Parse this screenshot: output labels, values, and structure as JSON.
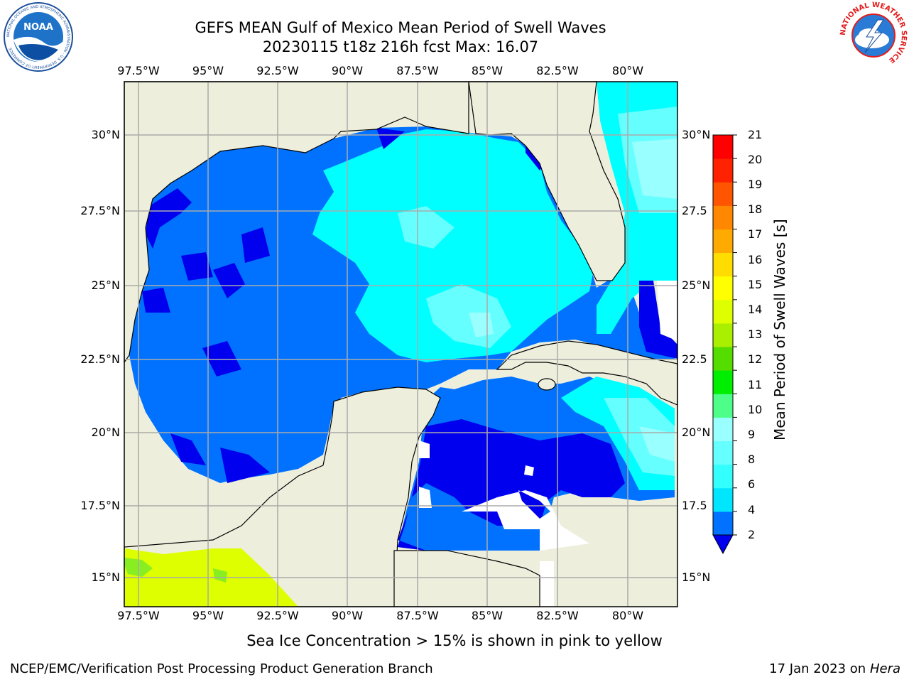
{
  "title": "GEFS MEAN Gulf of Mexico Mean Period of Swell Waves",
  "subtitle": "20230115 t18z 216h fcst   Max: 16.07",
  "lon_ticks": [
    "97.5°W",
    "95°W",
    "92.5°W",
    "90°W",
    "87.5°W",
    "85°W",
    "82.5°W",
    "80°W"
  ],
  "lat_ticks_left": [
    "30°N",
    "27.5°N",
    "25°N",
    "22.5°N",
    "20°N",
    "17.5°N",
    "15°N"
  ],
  "lat_ticks_right": [
    "30°N",
    "27.5",
    "25°N",
    "22.5",
    "20°N",
    "17.5",
    "15°N"
  ],
  "colorbar": {
    "label": "Mean Period of Swell Waves [s]",
    "ticks": [
      "21",
      "20",
      "19",
      "18",
      "17",
      "16",
      "15",
      "14",
      "13",
      "12",
      "11",
      "10",
      "9",
      "8",
      "6",
      "4",
      "2"
    ],
    "colors": [
      "#0000ee",
      "#0072ff",
      "#00e6ff",
      "#33ffff",
      "#66ffff",
      "#99ffff",
      "#4dff88",
      "#00ee00",
      "#55dd00",
      "#aaee00",
      "#ddff00",
      "#ffff00",
      "#ffdd00",
      "#ffaa00",
      "#ff8800",
      "#ff5500",
      "#ff2200",
      "#ff0000"
    ]
  },
  "map_colors": {
    "land": "#eeeedd",
    "period_2_4": "#0072ff",
    "period_under_2": "#0000ee",
    "period_4_6": "#00ffff",
    "period_6_8": "#66ffff",
    "period_8_9": "#99ffff",
    "ice_yellow": "#ddff00",
    "ice_green": "#88ee22"
  },
  "note": "Sea Ice Concentration > 15% is shown in pink to yellow",
  "footer_left": "NCEP/EMC/Verification Post Processing Product Generation Branch",
  "footer_right_prefix": "17 Jan 2023 on ",
  "footer_right_machine": "Hera",
  "logos": {
    "noaa": {
      "text": "NOAA",
      "ring": "NATIONAL OCEANIC AND ATMOSPHERIC ADMINISTRATION · U.S. DEPARTMENT OF COMMERCE"
    },
    "nws": {
      "ring": "NATIONAL WEATHER SERVICE"
    }
  }
}
